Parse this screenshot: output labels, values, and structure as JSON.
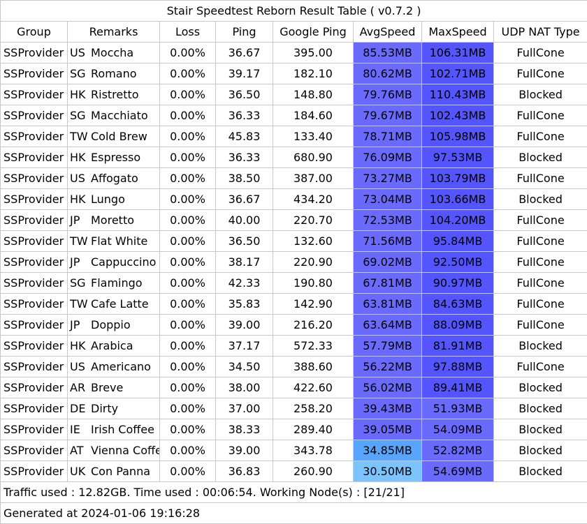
{
  "title": "Stair Speedtest Reborn Result Table ( v0.7.2 )",
  "headers": [
    "Group",
    "Remarks",
    "Loss",
    "Ping",
    "Google Ping",
    "AvgSpeed",
    "MaxSpeed",
    "UDP NAT Type"
  ],
  "rows": [
    {
      "group": "SSProvider",
      "region": "US",
      "name": "Moccha",
      "loss": "0.00%",
      "ping": "36.67",
      "google_ping": "395.00",
      "avg_speed": "85.53MB",
      "max_speed": "106.31MB",
      "nat": "FullCone",
      "avg_color": "#6a6aff",
      "max_color": "#5555ff"
    },
    {
      "group": "SSProvider",
      "region": "SG",
      "name": "Romano",
      "loss": "0.00%",
      "ping": "39.17",
      "google_ping": "182.10",
      "avg_speed": "80.62MB",
      "max_speed": "102.71MB",
      "nat": "FullCone",
      "avg_color": "#6a6aff",
      "max_color": "#5555ff"
    },
    {
      "group": "SSProvider",
      "region": "HK",
      "name": "Ristretto",
      "loss": "0.00%",
      "ping": "36.50",
      "google_ping": "148.80",
      "avg_speed": "79.76MB",
      "max_speed": "110.43MB",
      "nat": "Blocked",
      "avg_color": "#6a6aff",
      "max_color": "#5555ff"
    },
    {
      "group": "SSProvider",
      "region": "SG",
      "name": "Macchiato",
      "loss": "0.00%",
      "ping": "36.33",
      "google_ping": "184.60",
      "avg_speed": "79.67MB",
      "max_speed": "102.43MB",
      "nat": "FullCone",
      "avg_color": "#6a6aff",
      "max_color": "#5555ff"
    },
    {
      "group": "SSProvider",
      "region": "TW",
      "name": "Cold Brew",
      "loss": "0.00%",
      "ping": "45.83",
      "google_ping": "133.40",
      "avg_speed": "78.71MB",
      "max_speed": "105.98MB",
      "nat": "FullCone",
      "avg_color": "#6a6aff",
      "max_color": "#5555ff"
    },
    {
      "group": "SSProvider",
      "region": "HK",
      "name": "Espresso",
      "loss": "0.00%",
      "ping": "36.33",
      "google_ping": "680.90",
      "avg_speed": "76.09MB",
      "max_speed": "97.53MB",
      "nat": "Blocked",
      "avg_color": "#6a6aff",
      "max_color": "#5555ff"
    },
    {
      "group": "SSProvider",
      "region": "US",
      "name": "Affogato",
      "loss": "0.00%",
      "ping": "38.50",
      "google_ping": "387.00",
      "avg_speed": "73.27MB",
      "max_speed": "103.79MB",
      "nat": "FullCone",
      "avg_color": "#6a6aff",
      "max_color": "#5555ff"
    },
    {
      "group": "SSProvider",
      "region": "HK",
      "name": "Lungo",
      "loss": "0.00%",
      "ping": "36.67",
      "google_ping": "434.20",
      "avg_speed": "73.04MB",
      "max_speed": "103.66MB",
      "nat": "Blocked",
      "avg_color": "#6a6aff",
      "max_color": "#5555ff"
    },
    {
      "group": "SSProvider",
      "region": "JP",
      "name": "Moretto",
      "loss": "0.00%",
      "ping": "40.00",
      "google_ping": "220.70",
      "avg_speed": "72.53MB",
      "max_speed": "104.20MB",
      "nat": "FullCone",
      "avg_color": "#6a6aff",
      "max_color": "#5555ff"
    },
    {
      "group": "SSProvider",
      "region": "TW",
      "name": "Flat White",
      "loss": "0.00%",
      "ping": "36.50",
      "google_ping": "132.60",
      "avg_speed": "71.56MB",
      "max_speed": "95.84MB",
      "nat": "FullCone",
      "avg_color": "#6a6aff",
      "max_color": "#5555ff"
    },
    {
      "group": "SSProvider",
      "region": "JP",
      "name": "Cappuccino",
      "loss": "0.00%",
      "ping": "38.17",
      "google_ping": "220.90",
      "avg_speed": "69.02MB",
      "max_speed": "92.50MB",
      "nat": "FullCone",
      "avg_color": "#6a6aff",
      "max_color": "#5555ff"
    },
    {
      "group": "SSProvider",
      "region": "SG",
      "name": "Flamingo",
      "loss": "0.00%",
      "ping": "42.33",
      "google_ping": "190.80",
      "avg_speed": "67.81MB",
      "max_speed": "90.97MB",
      "nat": "FullCone",
      "avg_color": "#6a6aff",
      "max_color": "#5555ff"
    },
    {
      "group": "SSProvider",
      "region": "TW",
      "name": "Cafe Latte",
      "loss": "0.00%",
      "ping": "35.83",
      "google_ping": "142.90",
      "avg_speed": "63.81MB",
      "max_speed": "84.63MB",
      "nat": "FullCone",
      "avg_color": "#6a6aff",
      "max_color": "#5555ff"
    },
    {
      "group": "SSProvider",
      "region": "JP",
      "name": "Doppio",
      "loss": "0.00%",
      "ping": "39.00",
      "google_ping": "216.20",
      "avg_speed": "63.64MB",
      "max_speed": "88.09MB",
      "nat": "FullCone",
      "avg_color": "#6a6aff",
      "max_color": "#5555ff"
    },
    {
      "group": "SSProvider",
      "region": "HK",
      "name": "Arabica",
      "loss": "0.00%",
      "ping": "37.17",
      "google_ping": "572.33",
      "avg_speed": "57.79MB",
      "max_speed": "81.91MB",
      "nat": "Blocked",
      "avg_color": "#6a6aff",
      "max_color": "#5555ff"
    },
    {
      "group": "SSProvider",
      "region": "US",
      "name": "Americano",
      "loss": "0.00%",
      "ping": "34.50",
      "google_ping": "388.60",
      "avg_speed": "56.22MB",
      "max_speed": "97.88MB",
      "nat": "FullCone",
      "avg_color": "#6a6aff",
      "max_color": "#5555ff"
    },
    {
      "group": "SSProvider",
      "region": "AR",
      "name": "Breve",
      "loss": "0.00%",
      "ping": "38.00",
      "google_ping": "422.60",
      "avg_speed": "56.02MB",
      "max_speed": "89.41MB",
      "nat": "Blocked",
      "avg_color": "#6a6aff",
      "max_color": "#5555ff"
    },
    {
      "group": "SSProvider",
      "region": "DE",
      "name": "Dirty",
      "loss": "0.00%",
      "ping": "37.00",
      "google_ping": "258.20",
      "avg_speed": "39.43MB",
      "max_speed": "51.93MB",
      "nat": "Blocked",
      "avg_color": "#6a6aff",
      "max_color": "#6a6aff"
    },
    {
      "group": "SSProvider",
      "region": "IE",
      "name": "Irish Coffee",
      "loss": "0.00%",
      "ping": "38.33",
      "google_ping": "289.40",
      "avg_speed": "39.05MB",
      "max_speed": "54.09MB",
      "nat": "Blocked",
      "avg_color": "#6a6aff",
      "max_color": "#6a6aff"
    },
    {
      "group": "SSProvider",
      "region": "AT",
      "name": "Vienna Coffee",
      "loss": "0.00%",
      "ping": "39.00",
      "google_ping": "343.78",
      "avg_speed": "34.85MB",
      "max_speed": "52.82MB",
      "nat": "Blocked",
      "avg_color": "#58a4ff",
      "max_color": "#6a6aff"
    },
    {
      "group": "SSProvider",
      "region": "UK",
      "name": "Con Panna",
      "loss": "0.00%",
      "ping": "36.83",
      "google_ping": "260.90",
      "avg_speed": "30.50MB",
      "max_speed": "54.69MB",
      "nat": "Blocked",
      "avg_color": "#7cc4ff",
      "max_color": "#6a6aff"
    }
  ],
  "footer": {
    "traffic": "Traffic used : 12.82GB. Time used : 00:06:54. Working Node(s) : [21/21]",
    "generated": "Generated at 2024-01-06 19:16:28"
  },
  "colors": {
    "border": "#c8c8c8",
    "speed_high": "#5555ff",
    "speed_mid": "#6a6aff",
    "speed_low": "#58a4ff",
    "speed_lowest": "#7cc4ff"
  }
}
